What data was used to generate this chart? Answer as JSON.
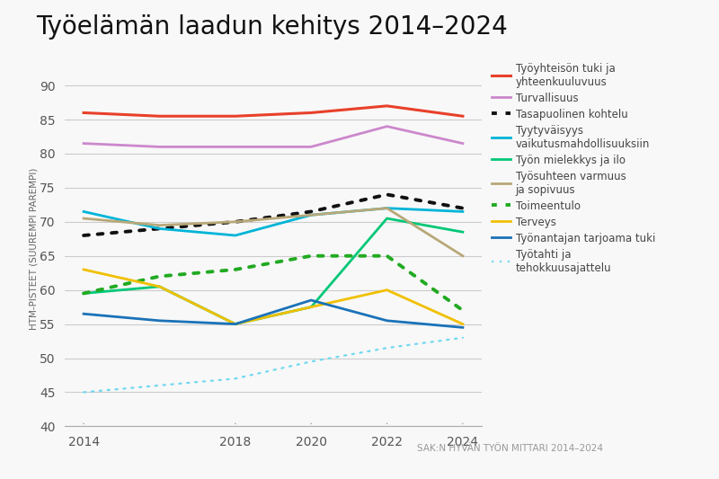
{
  "title": "Työelämän laadun kehitys 2014–2024",
  "ylabel": "HTM-PISTEET (SUUREMPI PAREMPI)",
  "source": "SAK:N HYVÄN TYÖN MITTARI 2014–2024",
  "years": [
    2014,
    2016,
    2018,
    2020,
    2022,
    2024
  ],
  "series": [
    {
      "label": "Työyhteisön tuki ja\nyhteenkuuluvuus",
      "color": "#e8402a",
      "linewidth": 2.2,
      "dotted": false,
      "dot_style": null,
      "values": [
        86,
        85.5,
        85.5,
        86,
        87,
        85.5
      ]
    },
    {
      "label": "Turvallisuus",
      "color": "#cc88cc",
      "linewidth": 2.0,
      "dotted": false,
      "dot_style": null,
      "values": [
        81.5,
        81,
        81,
        81,
        84,
        81.5
      ]
    },
    {
      "label": "Tasapuolinen kohtelu",
      "color": "#111111",
      "linewidth": 2.0,
      "dotted": true,
      "dot_style": "large",
      "values": [
        68,
        69,
        70,
        71.5,
        74,
        72
      ]
    },
    {
      "label": "Tyytyväisyys\nvaikutusmahdollisuuksiin",
      "color": "#00b4d8",
      "linewidth": 2.0,
      "dotted": false,
      "dot_style": null,
      "values": [
        71.5,
        69,
        68,
        71,
        72,
        71.5
      ]
    },
    {
      "label": "Työn mielekkys ja ilo",
      "color": "#00c878",
      "linewidth": 2.0,
      "dotted": false,
      "dot_style": null,
      "values": [
        59.5,
        60.5,
        55,
        57.5,
        70.5,
        68.5
      ]
    },
    {
      "label": "Työsuhteen varmuus\nja sopivuus",
      "color": "#b8a878",
      "linewidth": 2.0,
      "dotted": false,
      "dot_style": null,
      "values": [
        70.5,
        69.5,
        70,
        71,
        72,
        65
      ]
    },
    {
      "label": "Toimeentulo",
      "color": "#22aa22",
      "linewidth": 2.0,
      "dotted": true,
      "dot_style": "large",
      "values": [
        59.5,
        62,
        63,
        65,
        65,
        57
      ]
    },
    {
      "label": "Terveys",
      "color": "#f0c000",
      "linewidth": 2.0,
      "dotted": false,
      "dot_style": null,
      "values": [
        63,
        60.5,
        55,
        57.5,
        60,
        55
      ]
    },
    {
      "label": "Työnantajan tarjoama tuki",
      "color": "#1a72b8",
      "linewidth": 2.0,
      "dotted": false,
      "dot_style": null,
      "values": [
        56.5,
        55.5,
        55,
        58.5,
        55.5,
        54.5
      ]
    },
    {
      "label": "Työtahti ja\ntehokkuusajattelu",
      "color": "#70d8f0",
      "linewidth": 1.6,
      "dotted": true,
      "dot_style": "small",
      "values": [
        45,
        46,
        47,
        49.5,
        51.5,
        53
      ]
    }
  ],
  "xlim": [
    2013.5,
    2024.5
  ],
  "ylim": [
    40,
    92
  ],
  "yticks": [
    40,
    45,
    50,
    55,
    60,
    65,
    70,
    75,
    80,
    85,
    90
  ],
  "xticks": [
    2014,
    2018,
    2020,
    2022,
    2024
  ],
  "background_color": "#f8f8f8",
  "grid_color": "#cccccc",
  "title_fontsize": 20,
  "tick_fontsize": 10,
  "ylabel_fontsize": 7.5,
  "source_fontsize": 7.5,
  "legend_fontsize": 8.5
}
